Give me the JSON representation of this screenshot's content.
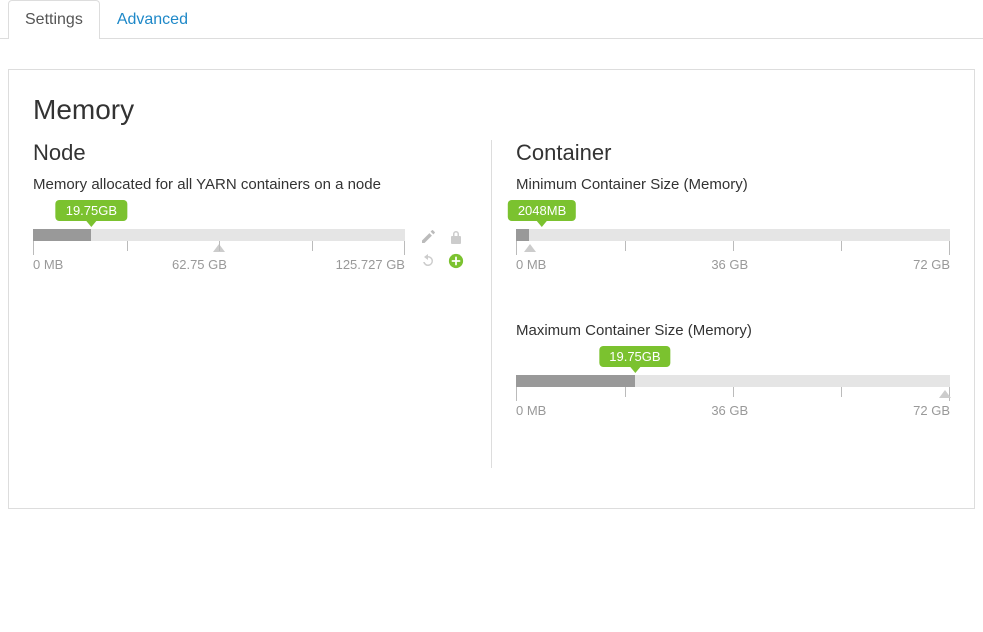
{
  "tabs": {
    "settings": "Settings",
    "advanced": "Advanced"
  },
  "section_title": "Memory",
  "colors": {
    "accent": "#7bc22f",
    "link": "#1e88c8",
    "track_bg": "#e5e5e5",
    "track_fill": "#999999",
    "muted": "#bbbbbb"
  },
  "node": {
    "heading": "Node",
    "label": "Memory allocated for all YARN containers on a node",
    "slider": {
      "value_label": "19.75GB",
      "fill_percent": 15.7,
      "badge_percent": 15.7,
      "caret_percent": 50,
      "tick_percents": [
        0,
        25,
        50,
        75,
        100
      ],
      "min_label": "0 MB",
      "mid_label": "62.75 GB",
      "max_label": "125.727 GB"
    }
  },
  "container": {
    "heading": "Container",
    "min": {
      "label": "Minimum Container Size (Memory)",
      "slider": {
        "value_label": "2048MB",
        "fill_percent": 3,
        "badge_percent": 6,
        "caret_percent": 3,
        "tick_percents": [
          0,
          25,
          50,
          75,
          100
        ],
        "min_label": "0 MB",
        "mid_label": "36 GB",
        "max_label": "72 GB"
      }
    },
    "max": {
      "label": "Maximum Container Size (Memory)",
      "slider": {
        "value_label": "19.75GB",
        "fill_percent": 27.4,
        "badge_percent": 27.4,
        "caret_percent": 99,
        "tick_percents": [
          0,
          25,
          50,
          75,
          100
        ],
        "min_label": "0 MB",
        "mid_label": "36 GB",
        "max_label": "72 GB"
      }
    }
  }
}
